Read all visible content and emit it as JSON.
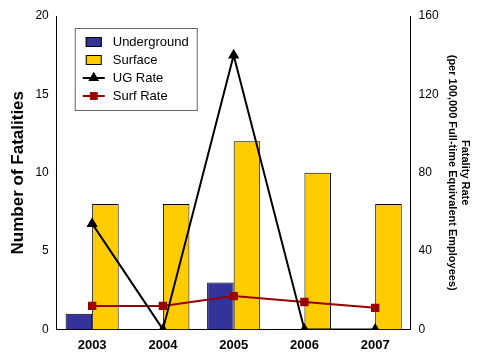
{
  "chart_data": {
    "type": "bar",
    "categories": [
      "2003",
      "2004",
      "2005",
      "2006",
      "2007"
    ],
    "series": [
      {
        "name": "Underground",
        "type": "bar",
        "color": "#333399",
        "values": [
          1,
          0,
          3,
          0,
          0
        ]
      },
      {
        "name": "Surface",
        "type": "bar",
        "color": "#ffcc00",
        "values": [
          8,
          8,
          12,
          10,
          8
        ]
      },
      {
        "name": "UG Rate",
        "type": "line",
        "axis": "y2",
        "color": "#000000",
        "marker": "triangle",
        "values": [
          54,
          0,
          140,
          0,
          0
        ]
      },
      {
        "name": "Surf Rate",
        "type": "line",
        "axis": "y2",
        "color": "#990000",
        "marker": "square",
        "values": [
          12,
          12,
          17,
          14,
          11
        ]
      }
    ],
    "y_label": "Number of Fatalities",
    "y2_label": [
      "Fatality Rate",
      "(per 100,000 Full-time Equivalent Employees)"
    ],
    "ylim": [
      0,
      20
    ],
    "yticks": [
      0,
      5,
      10,
      15,
      20
    ],
    "y2lim": [
      0,
      160
    ],
    "y2ticks": [
      0,
      40,
      80,
      120,
      160
    ],
    "legend": "upper left",
    "grid": false
  }
}
